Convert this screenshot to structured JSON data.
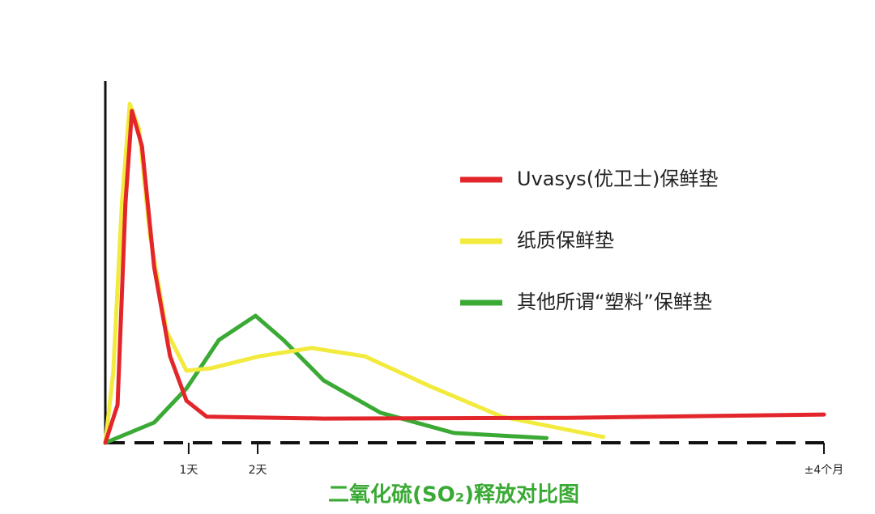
{
  "chart_data": {
    "type": "line",
    "title": "二氧化硫(SO₂)释放对比图",
    "xlim": [
      0,
      100
    ],
    "ylim": [
      0,
      100
    ],
    "xticks": [
      {
        "value": 11.6,
        "label": "1天"
      },
      {
        "value": 21.2,
        "label": "2天"
      },
      {
        "value": 100,
        "label": "±4个月"
      }
    ],
    "series": [
      {
        "name": "Uvasys(优卫士)保鲜垫",
        "color": "#e3262b",
        "x": [
          0,
          1.7,
          2.8,
          3.7,
          5.1,
          6.8,
          9.0,
          11.3,
          14.1,
          30.4,
          64.3,
          100
        ],
        "values": [
          0,
          10.5,
          66,
          91.7,
          82,
          48.5,
          24,
          11.6,
          7.2,
          6.7,
          6.9,
          7.8
        ]
      },
      {
        "name": "纸质保鲜垫",
        "color": "#f2ea3c",
        "x": [
          0,
          1.1,
          2.3,
          3.4,
          4.7,
          6.2,
          8.5,
          11.3,
          14.7,
          21.4,
          28.7,
          36.1,
          45.1,
          55.2,
          69.3
        ],
        "values": [
          0,
          19.5,
          66,
          93.7,
          86.6,
          57.5,
          30.9,
          19.9,
          20.6,
          23.9,
          26.2,
          23.9,
          15.7,
          7.2,
          1.6
        ]
      },
      {
        "name": "其他所谓“塑料”保鲜垫",
        "color": "#3aaa35",
        "x": [
          0,
          6.8,
          11.3,
          15.8,
          20.9,
          24.8,
          30.4,
          38.3,
          48.5,
          61.4
        ],
        "values": [
          0,
          5.6,
          15,
          28.4,
          35.1,
          28.4,
          17.2,
          8.3,
          2.7,
          1.3
        ]
      }
    ]
  }
}
